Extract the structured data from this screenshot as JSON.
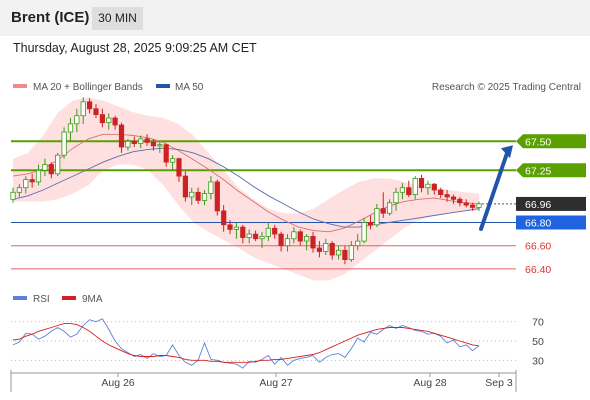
{
  "header": {
    "title": "Brent (ICE)",
    "timeframe": "30 MIN"
  },
  "timestamp": "Thursday, August 28, 2025 9:09:25 AM CET",
  "legend": {
    "ma20": "MA 20 + Bollinger Bands",
    "ma50": "MA 50",
    "credit": "Research © 2025 Trading Central",
    "rsi": "RSI",
    "rsi_ma": "9MA"
  },
  "colors": {
    "green": "#5aa000",
    "blue": "#2255aa",
    "red": "#e03030",
    "darkbox": "#2e2e2e",
    "ma20": "#d97070",
    "ma50": "#5a6ea8",
    "band": "#ffd6d6",
    "rsi": "#5b82d8",
    "rsi_ma": "#d42020"
  },
  "chart_data": [
    {
      "type": "candlestick",
      "title": "Brent (ICE) 30 MIN",
      "x_tick_labels": [
        "Aug 26",
        "Aug 27",
        "Aug 28",
        "Sep 3"
      ],
      "y_range": [
        66.27,
        67.89
      ],
      "ohlc": [
        [
          67.0,
          67.1,
          66.97,
          67.06
        ],
        [
          67.06,
          67.13,
          67.02,
          67.1
        ],
        [
          67.1,
          67.2,
          67.05,
          67.17
        ],
        [
          67.17,
          67.22,
          67.1,
          67.15
        ],
        [
          67.15,
          67.3,
          67.12,
          67.25
        ],
        [
          67.25,
          67.35,
          67.2,
          67.3
        ],
        [
          67.3,
          67.32,
          67.18,
          67.22
        ],
        [
          67.22,
          67.4,
          67.2,
          67.38
        ],
        [
          67.38,
          67.62,
          67.35,
          67.58
        ],
        [
          67.58,
          67.7,
          67.5,
          67.65
        ],
        [
          67.65,
          67.78,
          67.58,
          67.72
        ],
        [
          67.72,
          67.88,
          67.65,
          67.84
        ],
        [
          67.84,
          67.87,
          67.74,
          67.78
        ],
        [
          67.78,
          67.82,
          67.7,
          67.73
        ],
        [
          67.73,
          67.78,
          67.62,
          67.66
        ],
        [
          67.66,
          67.74,
          67.6,
          67.7
        ],
        [
          67.7,
          67.72,
          67.6,
          67.64
        ],
        [
          67.64,
          67.66,
          67.4,
          67.45
        ],
        [
          67.45,
          67.52,
          67.42,
          67.5
        ],
        [
          67.5,
          67.54,
          67.45,
          67.48
        ],
        [
          67.48,
          67.55,
          67.44,
          67.52
        ],
        [
          67.52,
          67.56,
          67.46,
          67.49
        ],
        [
          67.49,
          67.52,
          67.42,
          67.46
        ],
        [
          67.46,
          67.5,
          67.4,
          67.47
        ],
        [
          67.47,
          67.48,
          67.28,
          67.32
        ],
        [
          67.32,
          67.38,
          67.25,
          67.35
        ],
        [
          67.35,
          67.36,
          67.15,
          67.2
        ],
        [
          67.2,
          67.24,
          66.98,
          67.02
        ],
        [
          67.02,
          67.1,
          66.95,
          67.06
        ],
        [
          67.06,
          67.1,
          66.96,
          66.99
        ],
        [
          66.99,
          67.08,
          66.95,
          67.05
        ],
        [
          67.05,
          67.2,
          67.0,
          67.15
        ],
        [
          67.15,
          67.17,
          66.86,
          66.9
        ],
        [
          66.9,
          66.95,
          66.72,
          66.78
        ],
        [
          66.78,
          66.82,
          66.7,
          66.74
        ],
        [
          66.74,
          66.8,
          66.66,
          66.76
        ],
        [
          66.76,
          66.78,
          66.62,
          66.67
        ],
        [
          66.67,
          66.74,
          66.62,
          66.7
        ],
        [
          66.7,
          66.73,
          66.64,
          66.66
        ],
        [
          66.66,
          66.72,
          66.58,
          66.68
        ],
        [
          66.68,
          66.8,
          66.64,
          66.75
        ],
        [
          66.75,
          66.78,
          66.66,
          66.7
        ],
        [
          66.7,
          66.72,
          66.55,
          66.6
        ],
        [
          66.6,
          66.7,
          66.55,
          66.66
        ],
        [
          66.66,
          66.76,
          66.62,
          66.72
        ],
        [
          66.72,
          66.74,
          66.6,
          66.64
        ],
        [
          66.64,
          66.7,
          66.56,
          66.68
        ],
        [
          66.68,
          66.72,
          66.54,
          66.58
        ],
        [
          66.58,
          66.64,
          66.5,
          66.55
        ],
        [
          66.55,
          66.66,
          66.52,
          66.62
        ],
        [
          66.62,
          66.64,
          66.48,
          66.52
        ],
        [
          66.52,
          66.6,
          66.48,
          66.56
        ],
        [
          66.56,
          66.6,
          66.44,
          66.48
        ],
        [
          66.48,
          66.64,
          66.46,
          66.6
        ],
        [
          66.6,
          66.7,
          66.56,
          66.64
        ],
        [
          66.64,
          66.84,
          66.62,
          66.8
        ],
        [
          66.8,
          66.86,
          66.74,
          66.78
        ],
        [
          66.78,
          66.96,
          66.76,
          66.92
        ],
        [
          66.92,
          67.06,
          66.84,
          66.88
        ],
        [
          66.88,
          67.0,
          66.86,
          66.97
        ],
        [
          66.97,
          67.1,
          66.9,
          67.06
        ],
        [
          67.06,
          67.14,
          67.0,
          67.1
        ],
        [
          67.1,
          67.16,
          67.02,
          67.04
        ],
        [
          67.04,
          67.2,
          67.0,
          67.18
        ],
        [
          67.18,
          67.21,
          67.06,
          67.1
        ],
        [
          67.1,
          67.16,
          67.04,
          67.13
        ],
        [
          67.13,
          67.14,
          67.04,
          67.08
        ],
        [
          67.08,
          67.1,
          67.01,
          67.04
        ],
        [
          67.04,
          67.08,
          66.98,
          67.02
        ],
        [
          67.02,
          67.04,
          66.96,
          67.0
        ],
        [
          67.0,
          67.02,
          66.94,
          66.97
        ],
        [
          66.97,
          67.0,
          66.93,
          66.95
        ],
        [
          66.95,
          66.97,
          66.9,
          66.93
        ],
        [
          66.93,
          66.98,
          66.9,
          66.96
        ]
      ],
      "ma20": [
        67.2,
        67.22,
        67.26,
        67.34,
        67.44,
        67.52,
        67.56,
        67.56,
        67.55,
        67.53,
        67.49,
        67.42,
        67.34,
        67.26,
        67.17,
        67.07,
        66.98,
        66.89,
        66.82,
        66.76,
        66.73,
        66.72,
        66.75,
        66.81,
        66.88,
        66.94,
        66.98,
        67.0,
        67.01,
        66.99,
        66.97,
        66.96
      ],
      "ma50": [
        67.0,
        67.03,
        67.08,
        67.14,
        67.2,
        67.26,
        67.32,
        67.37,
        67.41,
        67.43,
        67.44,
        67.43,
        67.4,
        67.35,
        67.28,
        67.2,
        67.11,
        67.03,
        66.96,
        66.89,
        66.83,
        66.79,
        66.76,
        66.76,
        66.78,
        66.8,
        66.82,
        66.84,
        66.86,
        66.88,
        66.9,
        66.92
      ],
      "bb_upper": [
        67.35,
        67.4,
        67.55,
        67.75,
        67.85,
        67.88,
        67.85,
        67.8,
        67.75,
        67.72,
        67.7,
        67.65,
        67.55,
        67.4,
        67.25,
        67.1,
        67.0,
        66.92,
        66.88,
        66.88,
        66.92,
        67.0,
        67.08,
        67.15,
        67.18,
        67.18,
        67.15,
        67.12,
        67.1,
        67.08,
        67.06,
        67.05
      ],
      "bb_lower": [
        66.98,
        66.98,
        66.98,
        67.0,
        67.05,
        67.12,
        67.25,
        67.3,
        67.3,
        67.25,
        67.12,
        66.95,
        66.8,
        66.72,
        66.65,
        66.58,
        66.5,
        66.45,
        66.4,
        66.35,
        66.3,
        66.3,
        66.35,
        66.45,
        66.55,
        66.65,
        66.75,
        66.82,
        66.86,
        66.88,
        66.9,
        66.9
      ],
      "levels": [
        {
          "value": 67.5,
          "label": "67.50",
          "kind": "resistance"
        },
        {
          "value": 67.25,
          "label": "67.25",
          "kind": "resistance"
        },
        {
          "value": 66.96,
          "label": "66.96",
          "kind": "last"
        },
        {
          "value": 66.8,
          "label": "66.80",
          "kind": "pivot"
        },
        {
          "value": 66.6,
          "label": "66.60",
          "kind": "support"
        },
        {
          "value": 66.4,
          "label": "66.40",
          "kind": "support"
        }
      ],
      "annotation": "upward arrow toward 67.50"
    },
    {
      "type": "line",
      "title": "RSI",
      "y_range": [
        20,
        80
      ],
      "y_ticks": [
        70,
        50,
        30
      ],
      "series": [
        {
          "name": "RSI",
          "values": [
            46,
            49,
            58,
            57,
            52,
            55,
            60,
            64,
            60,
            54,
            57,
            66,
            72,
            70,
            73,
            62,
            50,
            42,
            38,
            34,
            36,
            32,
            37,
            34,
            35,
            46,
            35,
            28,
            25,
            30,
            48,
            31,
            30,
            28,
            27,
            26,
            22,
            29,
            28,
            31,
            35,
            26,
            33,
            25,
            30,
            32,
            33,
            35,
            28,
            33,
            36,
            37,
            33,
            42,
            53,
            49,
            59,
            57,
            62,
            66,
            63,
            66,
            64,
            61,
            60,
            57,
            58,
            55,
            48,
            51,
            44,
            46,
            40,
            45
          ]
        },
        {
          "name": "9MA",
          "values": [
            51,
            52,
            55,
            57,
            60,
            62,
            64,
            66,
            68,
            68,
            67,
            64,
            60,
            55,
            50,
            46,
            43,
            40,
            37,
            35,
            34,
            34,
            34,
            35,
            35,
            34,
            33,
            31,
            30,
            30,
            30,
            29,
            29,
            28,
            28,
            28,
            28,
            28,
            29,
            30,
            30,
            31,
            31,
            32,
            33,
            34,
            35,
            36,
            38,
            41,
            44,
            47,
            50,
            53,
            56,
            58,
            60,
            62,
            63,
            64,
            64,
            64,
            63,
            62,
            61,
            60,
            58,
            56,
            54,
            52,
            50,
            48,
            46,
            45
          ]
        }
      ]
    }
  ]
}
